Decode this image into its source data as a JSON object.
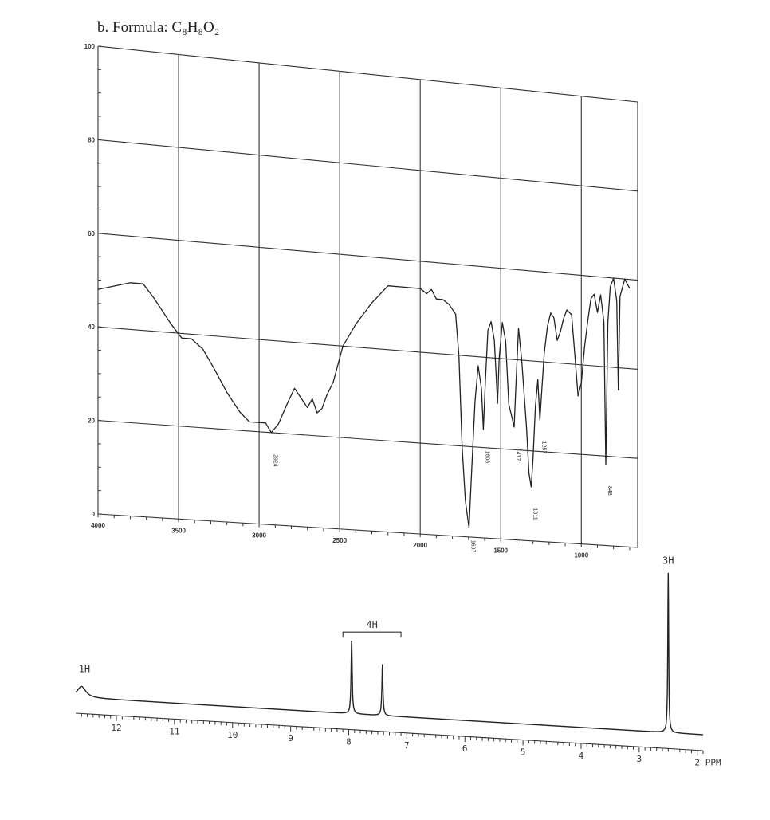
{
  "figure": {
    "title": "b.  Formula: C₈H₈O₂"
  },
  "chart_data": [
    {
      "type": "line",
      "kind": "IR spectrum",
      "x_unit": "cm-1",
      "y_unit": "% transmittance",
      "xlim": [
        4000,
        650
      ],
      "ylim": [
        0,
        100
      ],
      "x_ticks": [
        {
          "value": 4000,
          "label": "4000"
        },
        {
          "value": 3500,
          "label": "3500"
        },
        {
          "value": 3000,
          "label": "3000"
        },
        {
          "value": 2500,
          "label": "2500"
        },
        {
          "value": 2000,
          "label": "2000"
        },
        {
          "value": 1500,
          "label": "1500"
        },
        {
          "value": 1000,
          "label": "1000"
        }
      ],
      "y_ticks": [
        {
          "value": 100,
          "label": "100"
        },
        {
          "value": 80,
          "label": "80"
        },
        {
          "value": 60,
          "label": "60"
        },
        {
          "value": 40,
          "label": "40"
        },
        {
          "value": 20,
          "label": "20"
        },
        {
          "value": 0,
          "label": "0"
        }
      ],
      "grid": true,
      "series": [
        {
          "points": [
            [
              4000,
              48
            ],
            [
              3900,
              49
            ],
            [
              3800,
              50
            ],
            [
              3720,
              50
            ],
            [
              3650,
              47
            ],
            [
              3550,
              42
            ],
            [
              3480,
              39
            ],
            [
              3420,
              39
            ],
            [
              3350,
              37
            ],
            [
              3280,
              33
            ],
            [
              3200,
              28
            ],
            [
              3120,
              24
            ],
            [
              3060,
              22
            ],
            [
              3010,
              22
            ],
            [
              2960,
              22
            ],
            [
              2924,
              20
            ],
            [
              2880,
              22
            ],
            [
              2820,
              27
            ],
            [
              2780,
              30
            ],
            [
              2740,
              28
            ],
            [
              2700,
              26
            ],
            [
              2670,
              28
            ],
            [
              2640,
              25
            ],
            [
              2610,
              26
            ],
            [
              2580,
              29
            ],
            [
              2540,
              32
            ],
            [
              2480,
              40
            ],
            [
              2400,
              45
            ],
            [
              2300,
              50
            ],
            [
              2200,
              54
            ],
            [
              2100,
              54
            ],
            [
              2000,
              54
            ],
            [
              1960,
              53
            ],
            [
              1930,
              54
            ],
            [
              1900,
              52
            ],
            [
              1860,
              52
            ],
            [
              1820,
              51
            ],
            [
              1780,
              49
            ],
            [
              1760,
              40
            ],
            [
              1740,
              20
            ],
            [
              1720,
              8
            ],
            [
              1697,
              2
            ],
            [
              1680,
              15
            ],
            [
              1660,
              30
            ],
            [
              1640,
              38
            ],
            [
              1620,
              33
            ],
            [
              1608,
              24
            ],
            [
              1595,
              35
            ],
            [
              1580,
              46
            ],
            [
              1560,
              48
            ],
            [
              1540,
              44
            ],
            [
              1530,
              37
            ],
            [
              1520,
              30
            ],
            [
              1510,
              40
            ],
            [
              1490,
              48
            ],
            [
              1470,
              44
            ],
            [
              1450,
              30
            ],
            [
              1430,
              27
            ],
            [
              1417,
              25
            ],
            [
              1405,
              35
            ],
            [
              1390,
              47
            ],
            [
              1370,
              40
            ],
            [
              1340,
              25
            ],
            [
              1325,
              15
            ],
            [
              1311,
              12
            ],
            [
              1300,
              18
            ],
            [
              1285,
              30
            ],
            [
              1270,
              36
            ],
            [
              1257,
              27
            ],
            [
              1245,
              34
            ],
            [
              1230,
              42
            ],
            [
              1210,
              48
            ],
            [
              1190,
              51
            ],
            [
              1170,
              50
            ],
            [
              1150,
              45
            ],
            [
              1130,
              47
            ],
            [
              1110,
              50
            ],
            [
              1090,
              52
            ],
            [
              1060,
              51
            ],
            [
              1040,
              42
            ],
            [
              1020,
              33
            ],
            [
              1000,
              36
            ],
            [
              980,
              44
            ],
            [
              960,
              50
            ],
            [
              940,
              55
            ],
            [
              920,
              56
            ],
            [
              900,
              52
            ],
            [
              880,
              56
            ],
            [
              860,
              50
            ],
            [
              848,
              18
            ],
            [
              835,
              50
            ],
            [
              820,
              58
            ],
            [
              800,
              60
            ],
            [
              780,
              55
            ],
            [
              770,
              35
            ],
            [
              760,
              56
            ],
            [
              745,
              58
            ],
            [
              730,
              60
            ],
            [
              700,
              58
            ]
          ]
        }
      ],
      "annotations": [
        {
          "x": 2924,
          "label": "2924"
        },
        {
          "x": 1697,
          "label": "1697"
        },
        {
          "x": 1608,
          "label": "1608"
        },
        {
          "x": 1417,
          "label": "1417"
        },
        {
          "x": 1311,
          "label": "1311"
        },
        {
          "x": 1257,
          "label": "1257"
        },
        {
          "x": 848,
          "label": "848"
        }
      ]
    },
    {
      "type": "line",
      "kind": "1H NMR spectrum",
      "x_unit": "PPM",
      "xlim": [
        12.7,
        1.9
      ],
      "x_ticks": [
        {
          "value": 12,
          "label": "12"
        },
        {
          "value": 11,
          "label": "11"
        },
        {
          "value": 10,
          "label": "10"
        },
        {
          "value": 9,
          "label": "9"
        },
        {
          "value": 8,
          "label": "8"
        },
        {
          "value": 7,
          "label": "7"
        },
        {
          "value": 6,
          "label": "6"
        },
        {
          "value": 5,
          "label": "5"
        },
        {
          "value": 4,
          "label": "4"
        },
        {
          "value": 3,
          "label": "3"
        },
        {
          "value": 2,
          "label": "2"
        }
      ],
      "x_unit_label": "PPM",
      "peaks": [
        {
          "ppm": 12.6,
          "height": 0.07,
          "width": 0.18
        },
        {
          "ppm": 7.95,
          "height": 0.47,
          "width": 0.022
        },
        {
          "ppm": 7.42,
          "height": 0.32,
          "width": 0.022
        },
        {
          "ppm": 2.5,
          "height": 1.0,
          "width": 0.018
        }
      ],
      "integrations": [
        {
          "label": "1H",
          "from": 12.7,
          "to": 12.4
        },
        {
          "label": "4H",
          "from": 8.1,
          "to": 7.1
        },
        {
          "label": "3H",
          "from": 2.6,
          "to": 2.4
        }
      ]
    }
  ]
}
